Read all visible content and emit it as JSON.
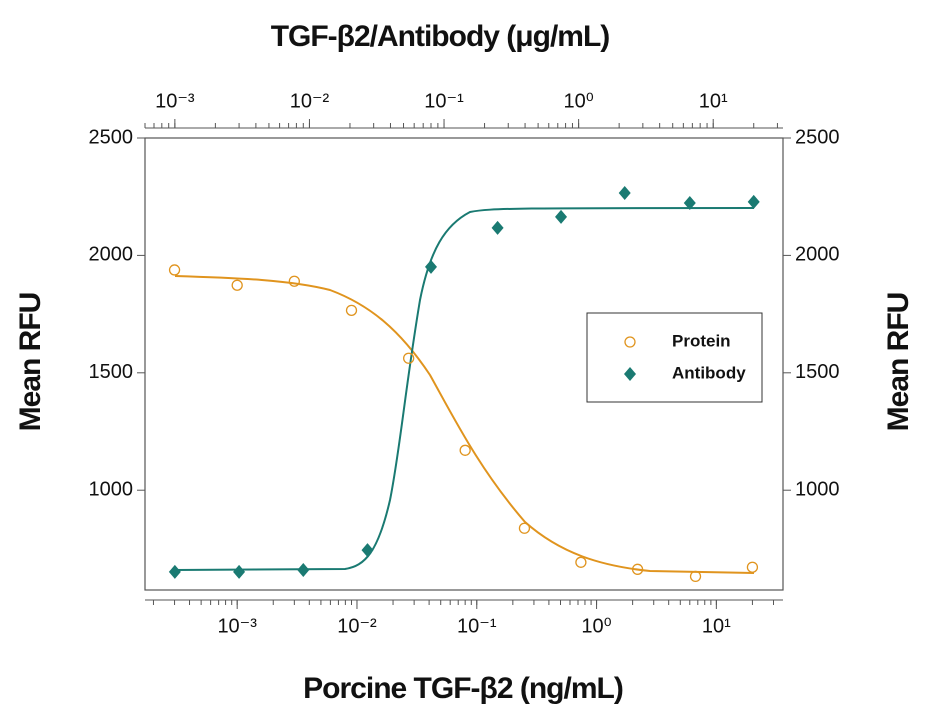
{
  "chart_data": {
    "type": "scatter",
    "x_label": "Porcine TGF-β2 (ng/mL)",
    "x2_label": "TGF-β2/Antibody (μg/mL)",
    "y_label": "Mean RFU",
    "y2_label": "Mean RFU",
    "xscale": "log",
    "xlim": [
      0.00017,
      36
    ],
    "xticks": [
      {
        "value": 0.001,
        "label": "10⁻³"
      },
      {
        "value": 0.01,
        "label": "10⁻²"
      },
      {
        "value": 0.1,
        "label": "10⁻¹"
      },
      {
        "value": 1,
        "label": "10⁰"
      },
      {
        "value": 10,
        "label": "10¹"
      }
    ],
    "x2lim": [
      0.0006,
      33
    ],
    "x2ticks": [
      {
        "value": 0.001,
        "label": "10⁻³"
      },
      {
        "value": 0.01,
        "label": "10⁻²"
      },
      {
        "value": 0.1,
        "label": "10⁻¹"
      },
      {
        "value": 1,
        "label": "10⁰"
      },
      {
        "value": 10,
        "label": "10¹"
      }
    ],
    "ylim": [
      575,
      2500
    ],
    "yticks": [
      1000,
      1500,
      2000,
      2500
    ],
    "y2lim": [
      575,
      2500
    ],
    "y2ticks": [
      1000,
      1500,
      2000,
      2500
    ],
    "series": [
      {
        "name": "Protein",
        "color": "#e0941e",
        "marker": "circle",
        "x": [
          0.0003,
          0.001,
          0.003,
          0.009,
          0.027,
          0.08,
          0.25,
          0.74,
          2.2,
          6.7,
          20
        ],
        "values": [
          1938,
          1873,
          1890,
          1766,
          1562,
          1170,
          838,
          693,
          663,
          633,
          672
        ]
      },
      {
        "name": "Antibody",
        "color": "#1a7a72",
        "marker": "diamond",
        "xaxis": "x2",
        "x": [
          0.001,
          0.003,
          0.009,
          0.027,
          0.08,
          0.25,
          0.74,
          2.2,
          6.7,
          20
        ],
        "values": [
          652,
          652,
          660,
          745,
          1951,
          2117,
          2164,
          2266,
          2223,
          2228
        ]
      }
    ]
  }
}
